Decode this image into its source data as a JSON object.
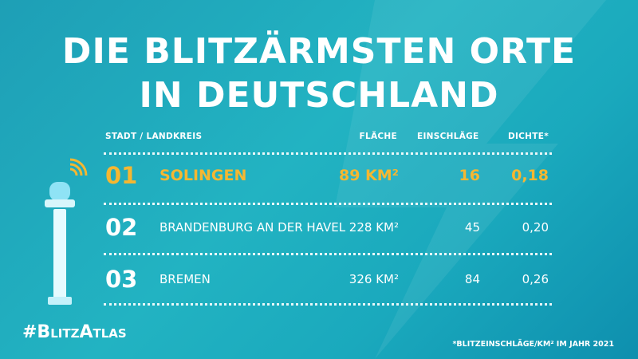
{
  "title": [
    "DIE BLITZÄRMSTEN ORTE",
    "IN DEUTSCHLAND"
  ],
  "table": {
    "header": [
      "STADT / LANDKREIS",
      "FLÄCHE",
      "EINSCHLÄGE",
      "DICHTE*"
    ],
    "rows": [
      [
        "01",
        "SOLINGEN",
        "89 KM²",
        "16",
        "0,18"
      ],
      [
        "02",
        "BRANDENBURG AN DER HAVEL",
        "228 KM²",
        "45",
        "0,20"
      ],
      [
        "03",
        "BREMEN",
        "326 KM²",
        "84",
        "0,26"
      ]
    ]
  },
  "hashtag": "#BlitzAtlas",
  "footnote": "*BLITZEINSCHLÄGE/KM² IM JAHR 2021"
}
